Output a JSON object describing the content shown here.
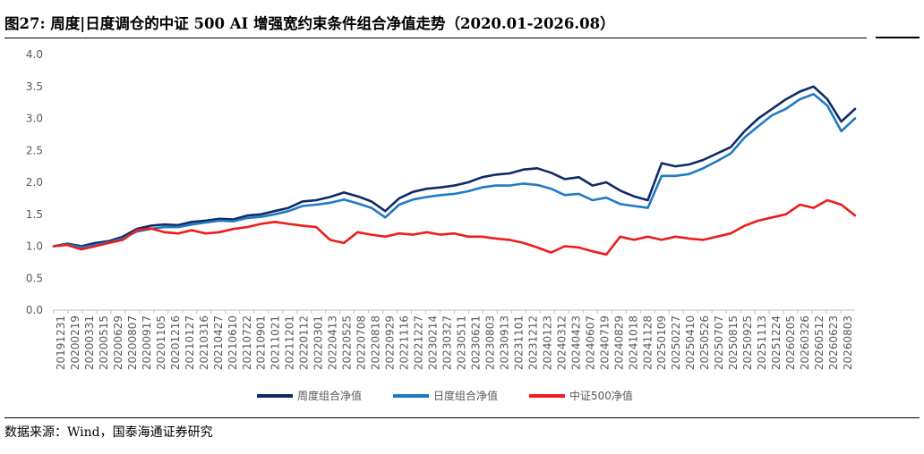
{
  "figure": {
    "title": "图27:  周度|日度调仓的中证 500 AI 增强宽约束条件组合净值走势（2020.01-2026.08）",
    "source": "数据来源：Wind，国泰海通证券研究"
  },
  "chart_data": {
    "type": "line",
    "ylim": [
      0.0,
      4.0
    ],
    "yticks": [
      "0.0",
      "0.5",
      "1.0",
      "1.5",
      "2.0",
      "2.5",
      "3.0",
      "3.5",
      "4.0"
    ],
    "xtick_labels": [
      "20191231",
      "20200219",
      "20200331",
      "20200515",
      "20200629",
      "20200807",
      "20200917",
      "20201105",
      "20201216",
      "20210127",
      "20210316",
      "20210427",
      "20210610",
      "20210722",
      "20210901",
      "20211021",
      "20211201",
      "20220112",
      "20220301",
      "20220413",
      "20220525",
      "20220708",
      "20220818",
      "20220929",
      "20221116",
      "20221227",
      "20230214",
      "20230327",
      "20230511",
      "20230621",
      "20230803",
      "20230913",
      "20231101",
      "20231212",
      "20240123",
      "20240312",
      "20240423",
      "20240607",
      "20240719",
      "20240829",
      "20241018",
      "20241128",
      "20250109",
      "20250227",
      "20250410",
      "20250526",
      "20250707",
      "20250815",
      "20250925",
      "20251113",
      "20251224",
      "20260205",
      "20260326",
      "20260512",
      "20260623",
      "20260803"
    ],
    "legend_position": "bottom",
    "grid": false,
    "series": [
      {
        "name": "周度组合净值",
        "color": "#0f2a66",
        "values": [
          1.0,
          1.04,
          1.0,
          1.05,
          1.08,
          1.15,
          1.27,
          1.32,
          1.34,
          1.33,
          1.38,
          1.4,
          1.43,
          1.42,
          1.48,
          1.5,
          1.55,
          1.6,
          1.7,
          1.72,
          1.77,
          1.84,
          1.78,
          1.7,
          1.55,
          1.75,
          1.85,
          1.9,
          1.92,
          1.95,
          2.0,
          2.08,
          2.12,
          2.14,
          2.2,
          2.22,
          2.15,
          2.05,
          2.08,
          1.95,
          2.0,
          1.87,
          1.78,
          1.72,
          2.3,
          2.25,
          2.28,
          2.35,
          2.45,
          2.55,
          2.8,
          3.0,
          3.15,
          3.3,
          3.42,
          3.5,
          3.3,
          2.95,
          3.15
        ]
      },
      {
        "name": "日度组合净值",
        "color": "#1f7ac4",
        "values": [
          1.0,
          1.03,
          0.98,
          1.02,
          1.06,
          1.12,
          1.23,
          1.27,
          1.3,
          1.3,
          1.34,
          1.37,
          1.4,
          1.39,
          1.44,
          1.46,
          1.5,
          1.55,
          1.63,
          1.65,
          1.68,
          1.73,
          1.67,
          1.6,
          1.45,
          1.65,
          1.73,
          1.77,
          1.8,
          1.82,
          1.86,
          1.92,
          1.95,
          1.95,
          1.98,
          1.96,
          1.9,
          1.8,
          1.82,
          1.72,
          1.76,
          1.66,
          1.63,
          1.6,
          2.1,
          2.1,
          2.13,
          2.22,
          2.33,
          2.45,
          2.7,
          2.88,
          3.05,
          3.15,
          3.3,
          3.38,
          3.2,
          2.8,
          3.0
        ]
      },
      {
        "name": "中证500净值",
        "color": "#ee1c1c",
        "values": [
          1.0,
          1.02,
          0.95,
          1.0,
          1.05,
          1.1,
          1.25,
          1.28,
          1.22,
          1.2,
          1.25,
          1.2,
          1.22,
          1.27,
          1.3,
          1.35,
          1.38,
          1.35,
          1.32,
          1.3,
          1.1,
          1.05,
          1.22,
          1.18,
          1.15,
          1.2,
          1.18,
          1.22,
          1.18,
          1.2,
          1.15,
          1.15,
          1.12,
          1.1,
          1.05,
          0.98,
          0.9,
          1.0,
          0.98,
          0.92,
          0.87,
          1.15,
          1.1,
          1.15,
          1.1,
          1.15,
          1.12,
          1.1,
          1.15,
          1.2,
          1.32,
          1.4,
          1.45,
          1.5,
          1.65,
          1.6,
          1.72,
          1.65,
          1.48
        ]
      }
    ]
  }
}
